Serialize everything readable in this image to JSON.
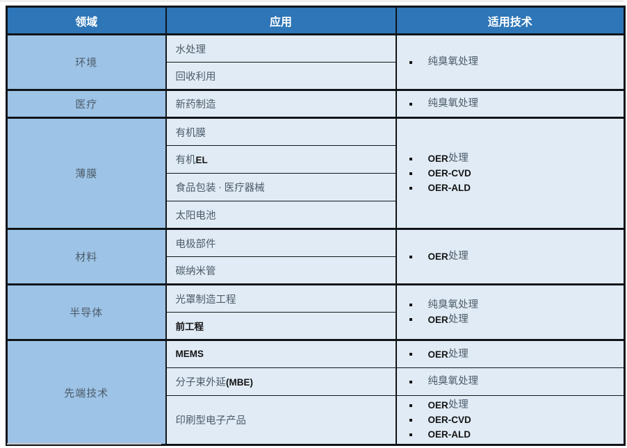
{
  "colors": {
    "header_bg": "#2e76b7",
    "header_text": "#ffffff",
    "field_bg": "#9dc3e6",
    "cell_bg": "#e0ebf5",
    "border": "#101418",
    "serif_text": "#4d5c6a",
    "sans_text": "#141414",
    "bullet": "#141414",
    "top_line": "#d8d8d8",
    "bottom_line": "#c9c9c9"
  },
  "table": {
    "headers": [
      "领域",
      "应用",
      "适用技术"
    ],
    "groups": [
      {
        "field": "环境",
        "rows": [
          {
            "app": [
              {
                "t": "水处理",
                "f": "serif"
              }
            ],
            "tech": {
              "rowspan": 2,
              "items": [
                [
                  {
                    "t": "纯臭氧处理",
                    "f": "serif"
                  }
                ]
              ]
            }
          },
          {
            "app": [
              {
                "t": "回收利用",
                "f": "serif"
              }
            ]
          }
        ]
      },
      {
        "field": "医疗",
        "rows": [
          {
            "app": [
              {
                "t": "新药制造",
                "f": "serif"
              }
            ],
            "tech": {
              "rowspan": 1,
              "items": [
                [
                  {
                    "t": "纯臭氧处理",
                    "f": "serif"
                  }
                ]
              ]
            }
          }
        ]
      },
      {
        "field": "薄膜",
        "rows": [
          {
            "app": [
              {
                "t": "有机膜",
                "f": "serif"
              }
            ],
            "tech": {
              "rowspan": 4,
              "items": [
                [
                  {
                    "t": "OER",
                    "f": "sans"
                  },
                  {
                    "t": "处理",
                    "f": "serif"
                  }
                ],
                [
                  {
                    "t": "OER-CVD",
                    "f": "sans"
                  }
                ],
                [
                  {
                    "t": "OER-ALD",
                    "f": "sans"
                  }
                ]
              ]
            }
          },
          {
            "app": [
              {
                "t": "有机",
                "f": "serif"
              },
              {
                "t": "EL",
                "f": "sans"
              }
            ]
          },
          {
            "app": [
              {
                "t": "食品包装 · 医疗器械",
                "f": "serif"
              }
            ]
          },
          {
            "app": [
              {
                "t": "太阳电池",
                "f": "serif"
              }
            ]
          }
        ]
      },
      {
        "field": "材料",
        "rows": [
          {
            "app": [
              {
                "t": "电极部件",
                "f": "serif"
              }
            ],
            "tech": {
              "rowspan": 2,
              "items": [
                [
                  {
                    "t": "OER",
                    "f": "sans"
                  },
                  {
                    "t": "处理",
                    "f": "serif"
                  }
                ]
              ]
            }
          },
          {
            "app": [
              {
                "t": "碳纳米管",
                "f": "serif"
              }
            ]
          }
        ]
      },
      {
        "field": "半导体",
        "rows": [
          {
            "app": [
              {
                "t": "光罩制造工程",
                "f": "serif"
              }
            ],
            "tech": {
              "rowspan": 2,
              "items": [
                [
                  {
                    "t": "纯臭氧处理",
                    "f": "serif"
                  }
                ],
                [
                  {
                    "t": "OER",
                    "f": "sans"
                  },
                  {
                    "t": "处理",
                    "f": "serif"
                  }
                ]
              ]
            }
          },
          {
            "app": [
              {
                "t": "前工程",
                "f": "sans"
              }
            ]
          }
        ]
      },
      {
        "field": "先端技术",
        "rows": [
          {
            "app": [
              {
                "t": "MEMS",
                "f": "sans"
              }
            ],
            "tech": {
              "rowspan": 1,
              "items": [
                [
                  {
                    "t": "OER",
                    "f": "sans"
                  },
                  {
                    "t": "处理",
                    "f": "serif"
                  }
                ]
              ]
            }
          },
          {
            "app": [
              {
                "t": "分子束外延",
                "f": "serif"
              },
              {
                "t": "(MBE)",
                "f": "sans"
              }
            ],
            "tech": {
              "rowspan": 1,
              "items": [
                [
                  {
                    "t": "纯臭氧处理",
                    "f": "serif"
                  }
                ]
              ]
            }
          },
          {
            "app": [
              {
                "t": "印刷型电子产品",
                "f": "serif"
              }
            ],
            "tech": {
              "rowspan": 1,
              "items": [
                [
                  {
                    "t": "OER",
                    "f": "sans"
                  },
                  {
                    "t": "处理",
                    "f": "serif"
                  }
                ],
                [
                  {
                    "t": "OER-CVD",
                    "f": "sans"
                  }
                ],
                [
                  {
                    "t": "OER-ALD",
                    "f": "sans"
                  }
                ]
              ]
            }
          }
        ]
      }
    ]
  }
}
